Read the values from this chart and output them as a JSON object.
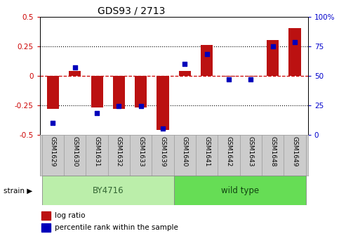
{
  "title": "GDS93 / 2713",
  "samples": [
    "GSM1629",
    "GSM1630",
    "GSM1631",
    "GSM1632",
    "GSM1633",
    "GSM1639",
    "GSM1640",
    "GSM1641",
    "GSM1642",
    "GSM1643",
    "GSM1648",
    "GSM1649"
  ],
  "log_ratio": [
    -0.28,
    0.04,
    -0.27,
    -0.28,
    -0.27,
    -0.46,
    0.04,
    0.26,
    -0.01,
    -0.01,
    0.3,
    0.4
  ],
  "percentile_rank": [
    10,
    57,
    18,
    24,
    24,
    5,
    60,
    68,
    47,
    47,
    75,
    78
  ],
  "groups": [
    {
      "label": "BY4716",
      "start": 0,
      "end": 6,
      "color": "#BBEEAA"
    },
    {
      "label": "wild type",
      "start": 6,
      "end": 12,
      "color": "#66DD55"
    }
  ],
  "bar_color": "#BB1111",
  "dot_color": "#0000BB",
  "ylim_left": [
    -0.5,
    0.5
  ],
  "ylim_right": [
    0,
    100
  ],
  "yticks_left": [
    -0.5,
    -0.25,
    0,
    0.25,
    0.5
  ],
  "yticks_right": [
    0,
    25,
    50,
    75,
    100
  ],
  "hline_color": "#CC0000",
  "dotted_color": "black",
  "bg_color": "white",
  "tick_label_color_left": "#CC0000",
  "tick_label_color_right": "#0000CC",
  "legend_items": [
    {
      "label": "log ratio",
      "color": "#BB1111"
    },
    {
      "label": "percentile rank within the sample",
      "color": "#0000BB"
    }
  ],
  "strain_label": "strain",
  "bar_width": 0.55,
  "tick_bg_color": "#CCCCCC",
  "tick_border_color": "#999999"
}
